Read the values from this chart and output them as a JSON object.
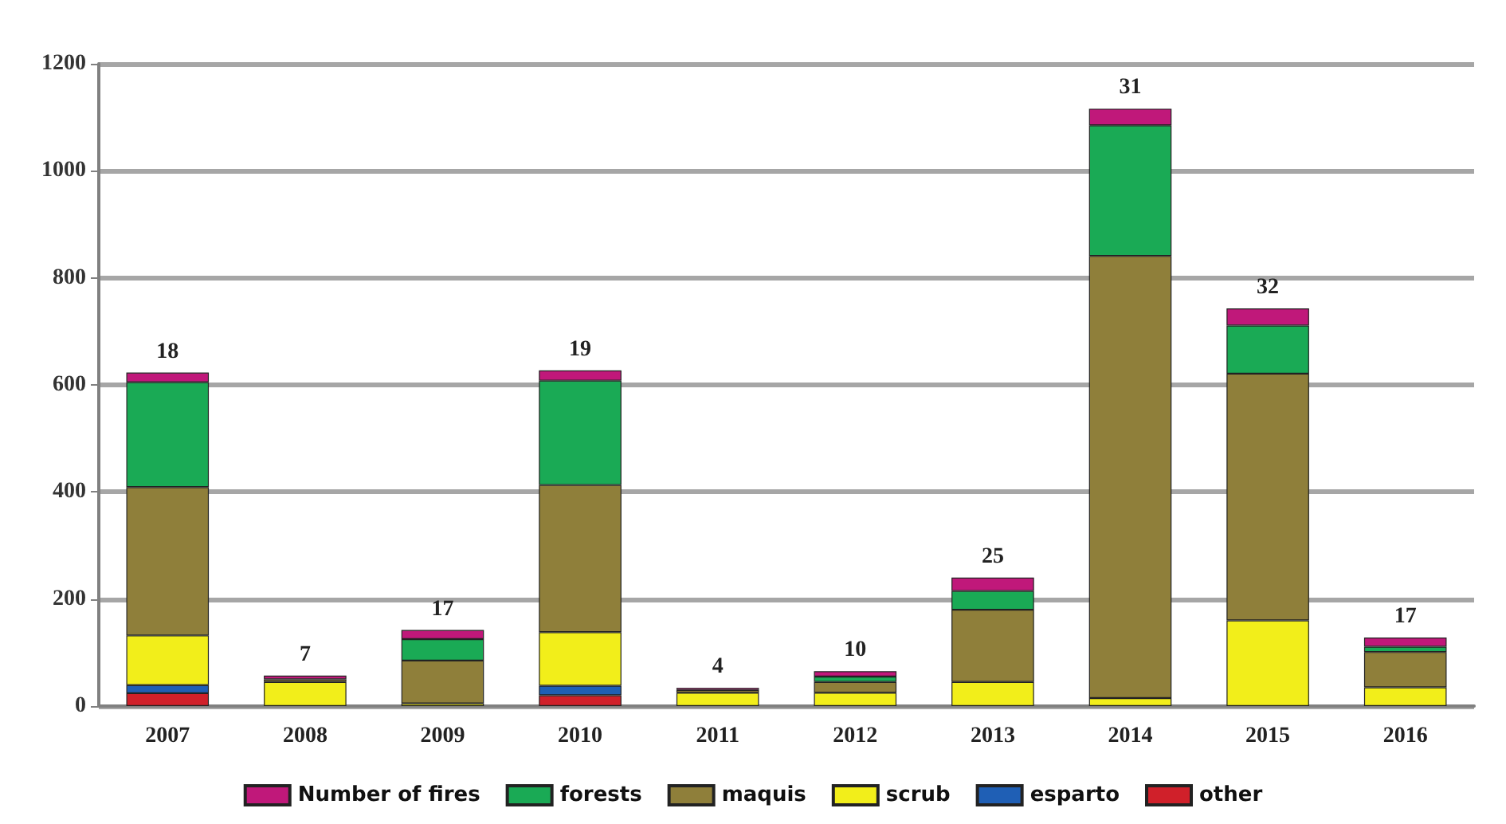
{
  "chart_data": {
    "type": "bar",
    "stacked": true,
    "categories": [
      "2007",
      "2008",
      "2009",
      "2010",
      "2011",
      "2012",
      "2013",
      "2014",
      "2015",
      "2016"
    ],
    "series": [
      {
        "name": "other",
        "color": "#d0202a",
        "values": [
          24,
          null,
          null,
          20,
          null,
          null,
          null,
          null,
          null,
          null
        ]
      },
      {
        "name": "esparto",
        "color": "#1f5fb5",
        "values": [
          15,
          null,
          null,
          18,
          null,
          null,
          null,
          null,
          null,
          null
        ]
      },
      {
        "name": "scrub",
        "color": "#f2ee1a",
        "values": [
          93,
          45,
          5,
          100,
          25,
          25,
          45,
          15,
          160,
          35
        ]
      },
      {
        "name": "maquis",
        "color": "#8f7f3a",
        "values": [
          277,
          5,
          80,
          275,
          5,
          20,
          135,
          826,
          461,
          66
        ]
      },
      {
        "name": "forests",
        "color": "#1aaa55",
        "values": [
          196,
          null,
          40,
          195,
          null,
          10,
          35,
          244,
          90,
          10
        ]
      },
      {
        "name": "Number of fires",
        "color": "#c0187a",
        "values": [
          18,
          7,
          17,
          19,
          4,
          10,
          25,
          31,
          32,
          17
        ],
        "value_labels": [
          "18",
          "7",
          "17",
          "19",
          "4",
          "10",
          "25",
          "31",
          "32",
          "17"
        ]
      }
    ],
    "ylim": [
      0,
      1200
    ],
    "yticks": [
      0,
      200,
      400,
      600,
      800,
      1000,
      1200
    ],
    "grid": "y",
    "legend": "bottom"
  }
}
